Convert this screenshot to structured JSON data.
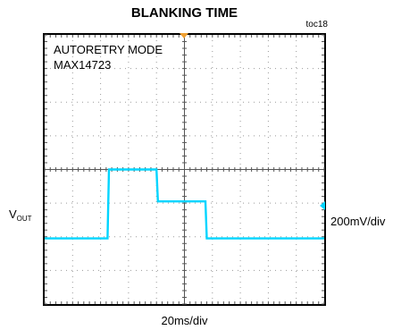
{
  "chart": {
    "title": "BLANKING TIME",
    "figure_ref": "toc18",
    "mode_label": "AUTORETRY MODE",
    "device_label": "MAX14723",
    "y_label_main": "V",
    "y_label_sub": "OUT",
    "vertical_scale": "200mV/div",
    "horizontal_scale": "20ms/div"
  },
  "colors": {
    "trace": "#00d5ff",
    "marker_trigger": "#f0a030",
    "marker_level": "#00d5ff",
    "background": "#ffffff",
    "frame": "#000000",
    "grid": "#9a9a9a"
  },
  "chart_data": {
    "type": "line",
    "title": "BLANKING TIME",
    "xlabel": "20ms/div",
    "ylabel": "VOUT",
    "x_unit": "ms",
    "y_unit": "mV",
    "xlim": [
      -100,
      100
    ],
    "ylim": [
      -800,
      800
    ],
    "grid": true,
    "divisions": {
      "x": 10,
      "y": 8
    },
    "series": [
      {
        "x": [
          -100,
          -57,
          -55,
          -54,
          -20,
          -19,
          15,
          16,
          100
        ],
        "y": [
          -410,
          -410,
          -410,
          0,
          0,
          -190,
          -190,
          -410,
          -410
        ]
      }
    ]
  }
}
